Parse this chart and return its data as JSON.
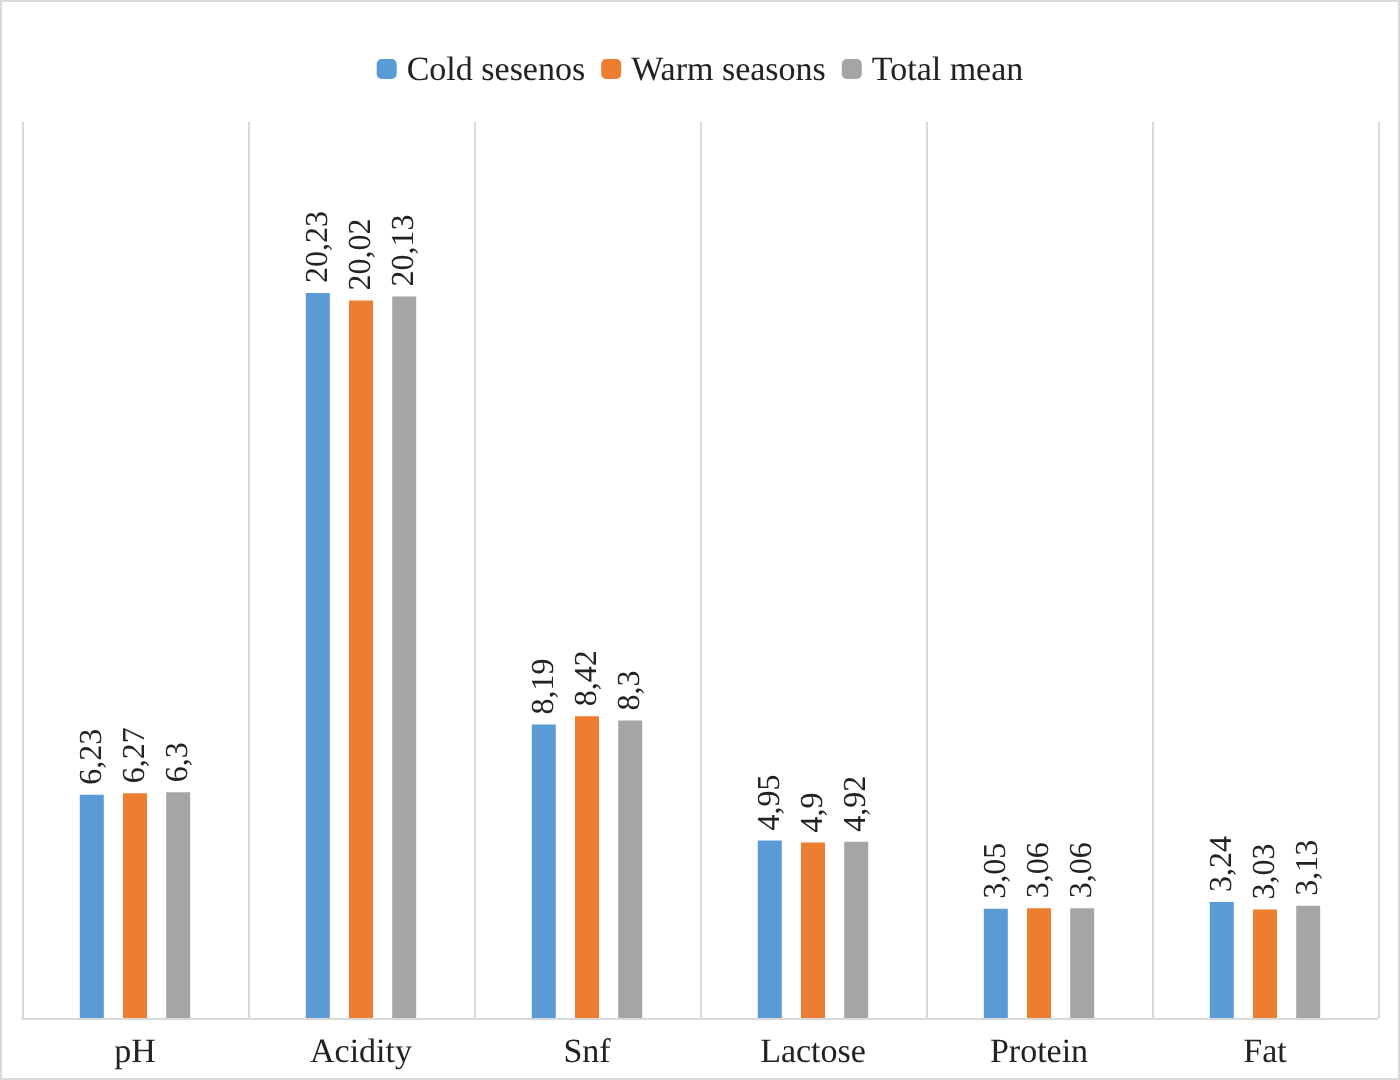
{
  "chart_data": {
    "type": "bar",
    "categories": [
      "pH",
      "Acidity",
      "Snf",
      "Lactose",
      "Protein",
      "Fat"
    ],
    "series": [
      {
        "name": "Cold sesenos",
        "color": "#5b9bd5",
        "values": [
          6.23,
          20.23,
          8.19,
          4.95,
          3.05,
          3.24
        ],
        "value_labels": [
          "6,23",
          "20,23",
          "8,19",
          "4,95",
          "3,05",
          "3,24"
        ]
      },
      {
        "name": "Warm seasons",
        "color": "#ed7d31",
        "values": [
          6.27,
          20.02,
          8.42,
          4.9,
          3.06,
          3.03
        ],
        "value_labels": [
          "6,27",
          "20,02",
          "8,42",
          "4,9",
          "3,06",
          "3,03"
        ]
      },
      {
        "name": "Total mean",
        "color": "#a5a5a5",
        "values": [
          6.3,
          20.13,
          8.3,
          4.92,
          3.06,
          3.13
        ],
        "value_labels": [
          "6,3",
          "20,13",
          "8,3",
          "4,92",
          "3,06",
          "3,13"
        ]
      }
    ],
    "grid": "x",
    "legend": "top"
  }
}
